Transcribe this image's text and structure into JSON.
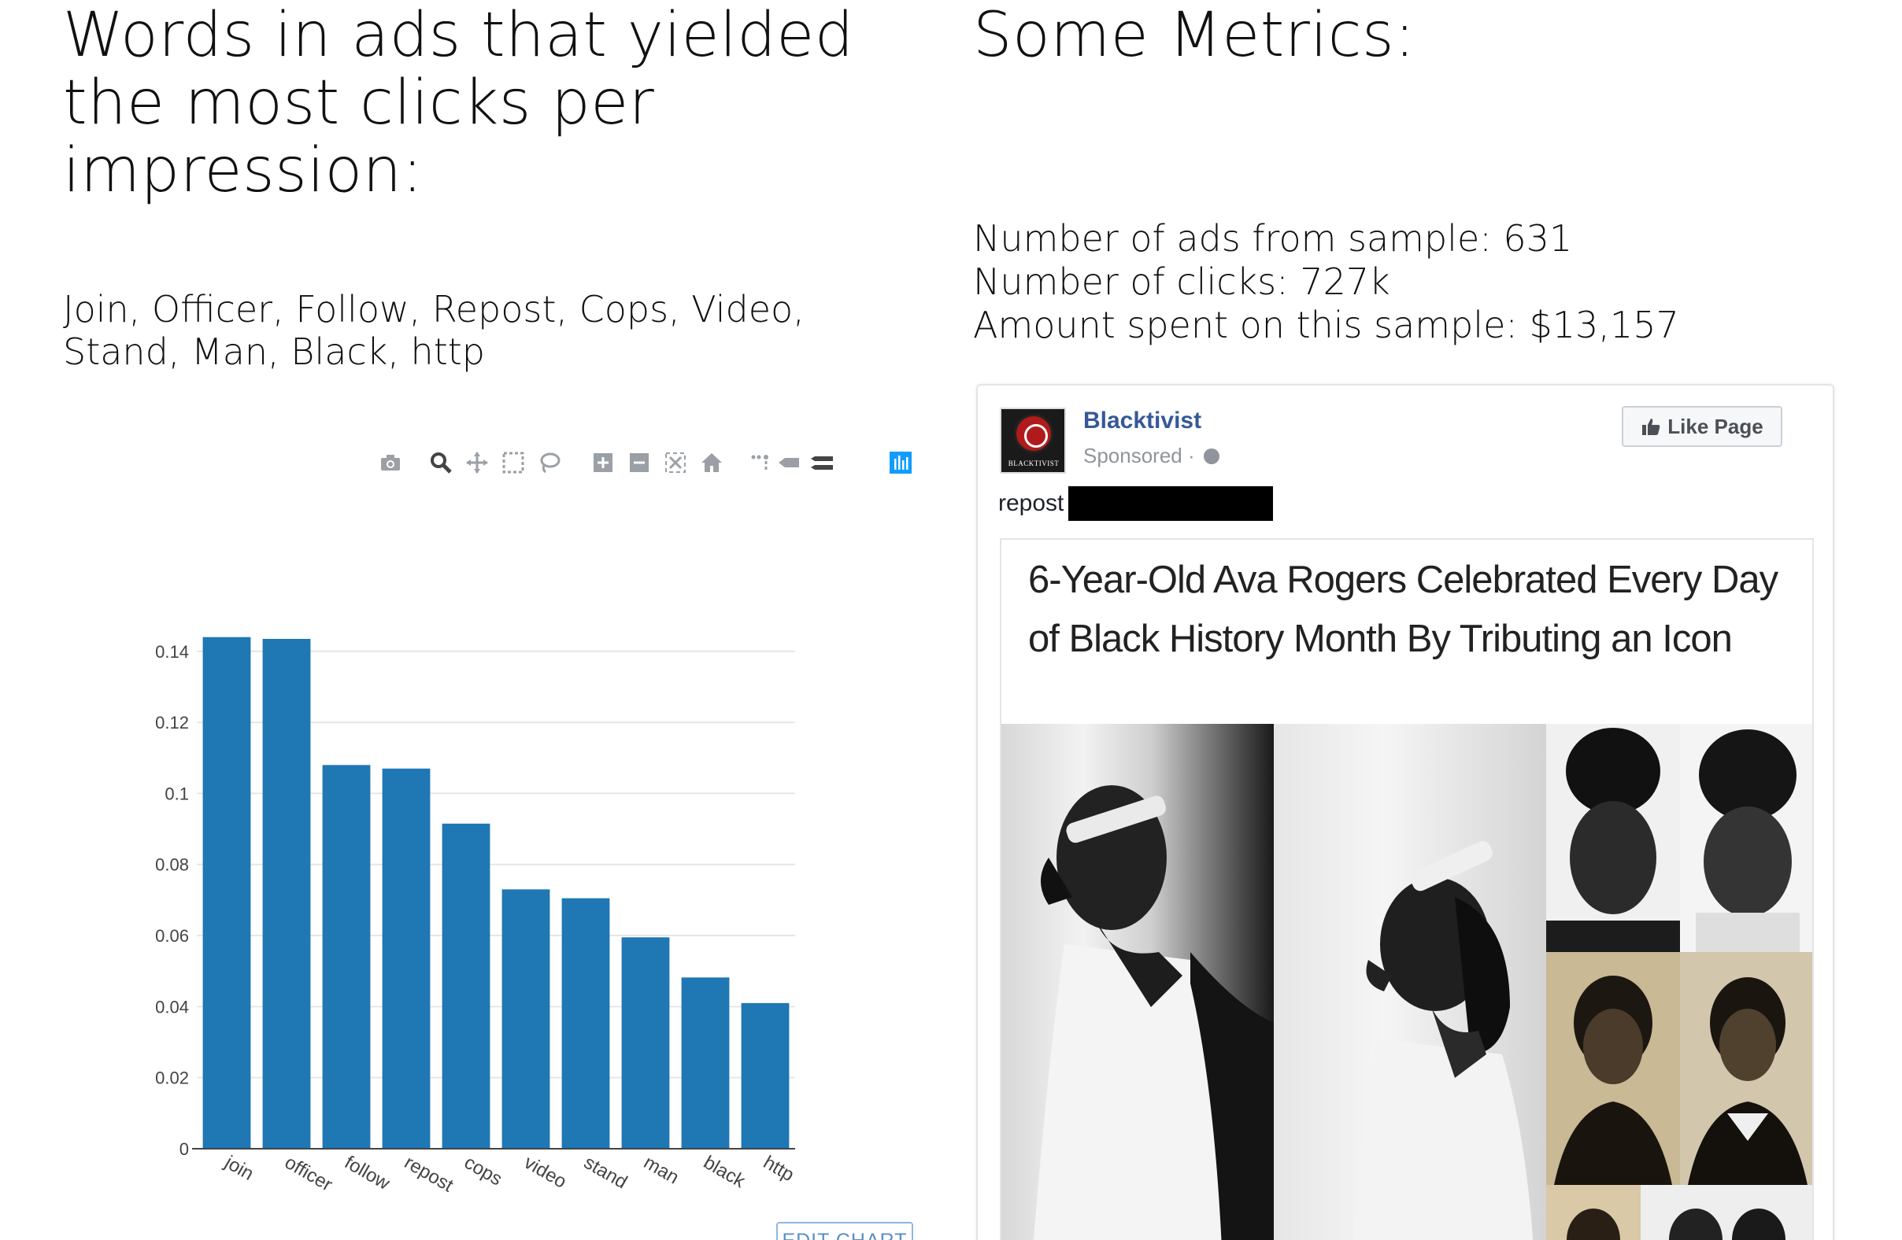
{
  "left_panel": {
    "title": "Words in ads that yielded the most clicks per impression:",
    "words": "Join, Officer, Follow, Repost, Cops, Video, Stand, Man, Black, http"
  },
  "right_panel": {
    "title": "Some Metrics:",
    "metrics": [
      "Number of ads from sample: 631",
      "Number of clicks: 727k",
      "Amount spent on this sample: $13,157"
    ]
  },
  "modebar_icons": [
    "camera-icon",
    "zoom-icon",
    "pan-icon",
    "box-select-icon",
    "lasso-icon",
    "zoom-in-icon",
    "zoom-out-icon",
    "autoscale-icon",
    "reset-axes-icon",
    "spike-lines-icon",
    "hover-closest-icon",
    "hover-compare-icon",
    "plotly-logo-icon"
  ],
  "edit_chart_label": "EDIT CHART",
  "chart_data": {
    "type": "bar",
    "categories": [
      "join",
      "officer",
      "follow",
      "repost",
      "cops",
      "video",
      "stand",
      "man",
      "black",
      "http"
    ],
    "values": [
      0.144,
      0.1435,
      0.108,
      0.107,
      0.0915,
      0.073,
      0.0705,
      0.0595,
      0.0482,
      0.041
    ],
    "yticks": [
      "0",
      "0.02",
      "0.04",
      "0.06",
      "0.08",
      "0.1",
      "0.12",
      "0.14"
    ],
    "ylim": [
      0,
      0.1435
    ],
    "bar_color": "#1f77b4",
    "grid": true,
    "title": "",
    "xlabel": "",
    "ylabel": ""
  },
  "ad": {
    "page_name": "Blacktivist",
    "sponsored": "Sponsored ·",
    "avatar_caption": "BLACKTIVIST",
    "like_button": "Like Page",
    "caption_word": "repost",
    "headline": "6-Year-Old Ava Rogers Celebrated Every Day of Black History Month By Tributing an Icon",
    "link_color": "#365899"
  }
}
